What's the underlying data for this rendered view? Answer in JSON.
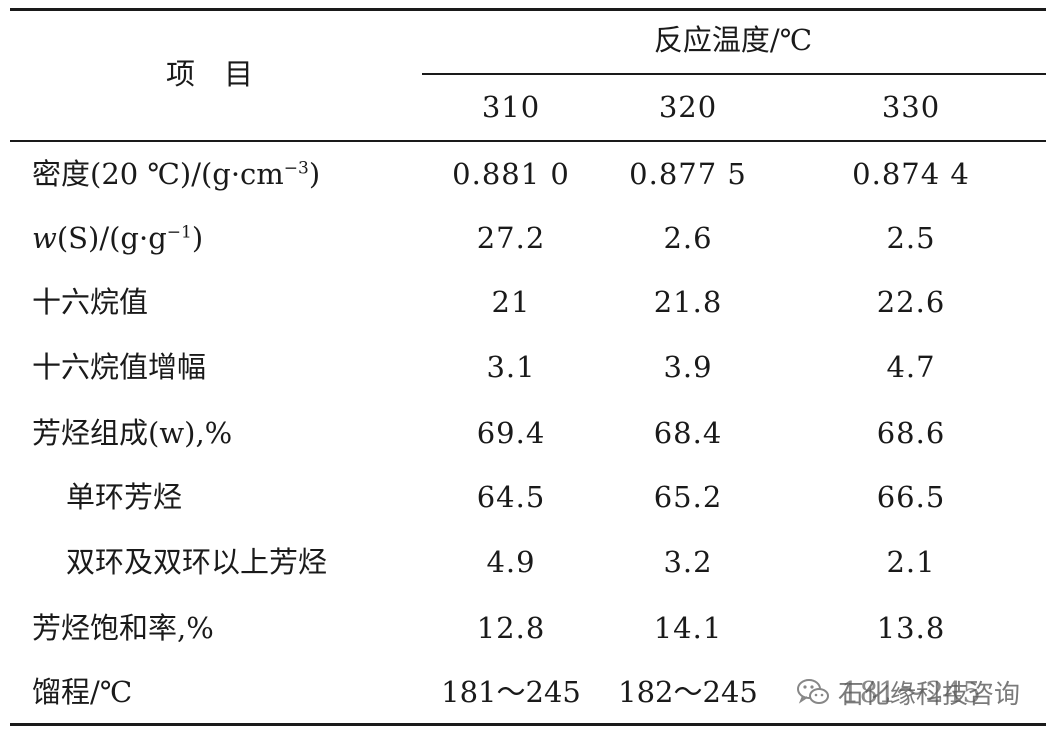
{
  "header": {
    "item_label": "项　目",
    "group_label": "反应温度/℃",
    "columns": [
      "310",
      "320",
      "330"
    ]
  },
  "rows": [
    {
      "label": "密度(20 ℃)/(g·cm",
      "label_sup": "−3",
      "label_tail": ")",
      "values": [
        "0.881 0",
        "0.877 5",
        "0.874 4"
      ]
    },
    {
      "label_italic": "w",
      "label": "(S)/(g·g",
      "label_sup": "−1",
      "label_tail": ")",
      "values": [
        "27.2",
        "2.6",
        "2.5"
      ]
    },
    {
      "label": "十六烷值",
      "values": [
        "21",
        "21.8",
        "22.6"
      ]
    },
    {
      "label": "十六烷值增幅",
      "values": [
        "3.1",
        "3.9",
        "4.7"
      ]
    },
    {
      "label": "芳烃组成(w),%",
      "values": [
        "69.4",
        "68.4",
        "68.6"
      ]
    },
    {
      "label": "单环芳烃",
      "values": [
        "64.5",
        "65.2",
        "66.5"
      ]
    },
    {
      "label": "双环及双环以上芳烃",
      "values": [
        "4.9",
        "3.2",
        "2.1"
      ]
    },
    {
      "label": "芳烃饱和率,%",
      "values": [
        "12.8",
        "14.1",
        "13.8"
      ]
    },
    {
      "label": "馏程/℃",
      "values": [
        "181～245",
        "182～245",
        "181～245"
      ]
    }
  ],
  "watermark": {
    "text": "石化缘科技咨询",
    "icon": "wechat-icon"
  }
}
